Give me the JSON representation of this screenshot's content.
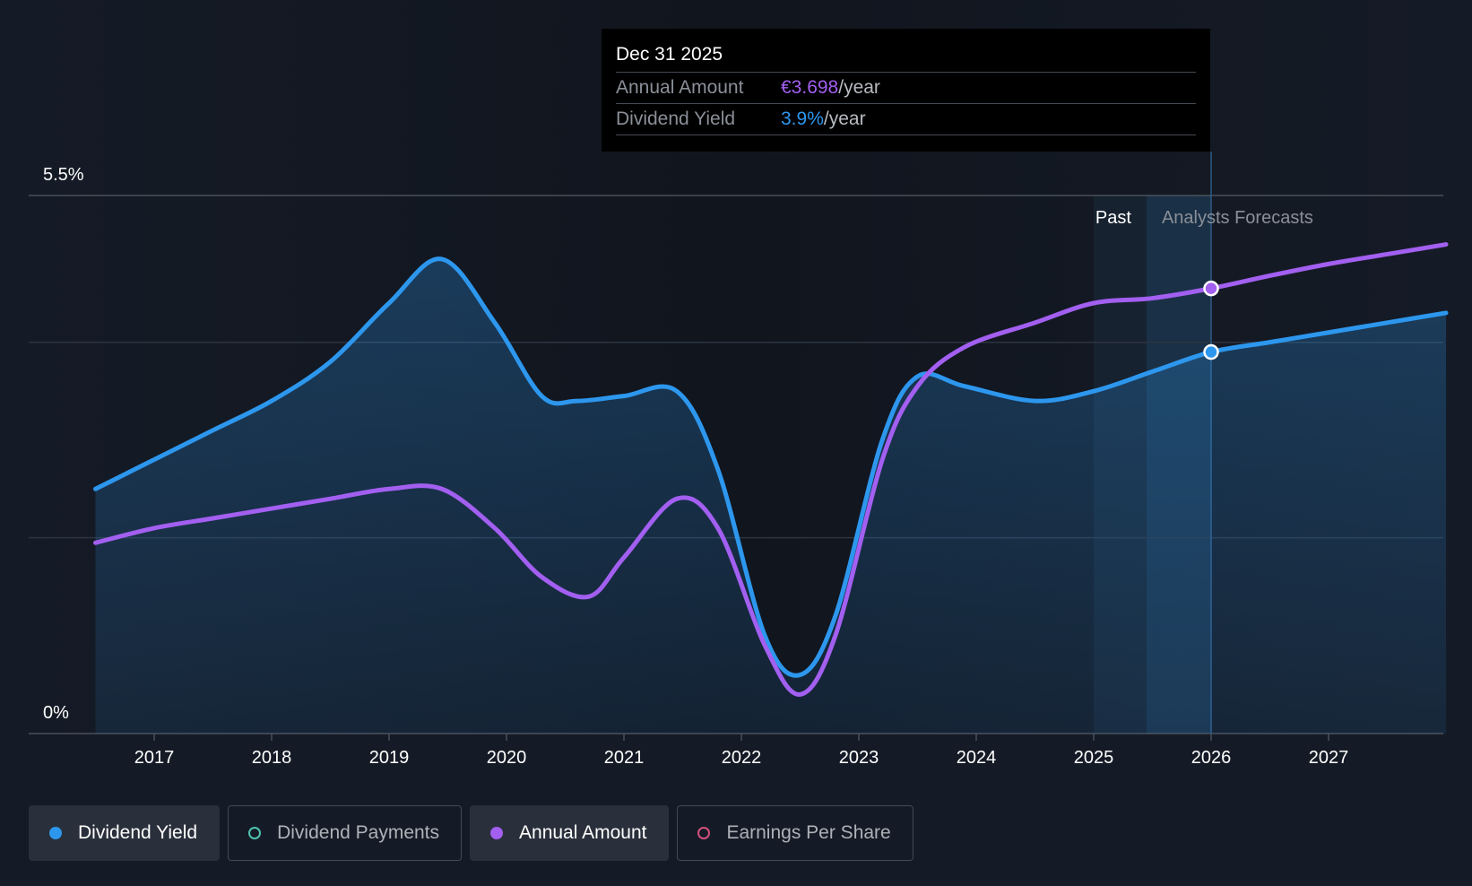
{
  "chart_data": {
    "type": "line",
    "y_axis": {
      "labels": [
        "5.5%",
        "0%"
      ],
      "ylim": [
        0,
        5.5
      ],
      "grid": true
    },
    "x_axis": {
      "ticks": [
        "2017",
        "2018",
        "2019",
        "2020",
        "2021",
        "2022",
        "2023",
        "2024",
        "2025",
        "2026",
        "2027"
      ],
      "xlim": [
        2016.0,
        2028.0
      ]
    },
    "zones": {
      "past_label": "Past",
      "forecast_label": "Analysts Forecasts",
      "forecast_start": 2025.45
    },
    "series": [
      {
        "name": "Dividend Yield",
        "color": "#2d97ee",
        "filled": true,
        "points": [
          [
            2016.5,
            2.5
          ],
          [
            2017.0,
            2.8
          ],
          [
            2017.5,
            3.1
          ],
          [
            2018.0,
            3.4
          ],
          [
            2018.5,
            3.8
          ],
          [
            2019.0,
            4.4
          ],
          [
            2019.45,
            4.85
          ],
          [
            2019.9,
            4.2
          ],
          [
            2020.3,
            3.45
          ],
          [
            2020.6,
            3.4
          ],
          [
            2021.0,
            3.45
          ],
          [
            2021.45,
            3.5
          ],
          [
            2021.8,
            2.7
          ],
          [
            2022.2,
            1.0
          ],
          [
            2022.5,
            0.6
          ],
          [
            2022.8,
            1.2
          ],
          [
            2023.2,
            3.0
          ],
          [
            2023.5,
            3.65
          ],
          [
            2023.9,
            3.55
          ],
          [
            2024.5,
            3.4
          ],
          [
            2025.0,
            3.5
          ],
          [
            2025.5,
            3.7
          ],
          [
            2026.0,
            3.9
          ],
          [
            2026.5,
            4.0
          ],
          [
            2027.0,
            4.1
          ],
          [
            2027.5,
            4.2
          ],
          [
            2028.0,
            4.3
          ]
        ]
      },
      {
        "name": "Annual Amount",
        "color": "#a25ff0",
        "filled": false,
        "points": [
          [
            2016.5,
            1.95
          ],
          [
            2017.0,
            2.1
          ],
          [
            2017.5,
            2.2
          ],
          [
            2018.0,
            2.3
          ],
          [
            2018.5,
            2.4
          ],
          [
            2019.0,
            2.5
          ],
          [
            2019.45,
            2.5
          ],
          [
            2019.9,
            2.1
          ],
          [
            2020.3,
            1.6
          ],
          [
            2020.7,
            1.4
          ],
          [
            2021.0,
            1.8
          ],
          [
            2021.45,
            2.4
          ],
          [
            2021.8,
            2.1
          ],
          [
            2022.2,
            0.9
          ],
          [
            2022.5,
            0.4
          ],
          [
            2022.8,
            1.0
          ],
          [
            2023.2,
            2.8
          ],
          [
            2023.5,
            3.55
          ],
          [
            2023.9,
            3.95
          ],
          [
            2024.5,
            4.2
          ],
          [
            2025.0,
            4.4
          ],
          [
            2025.5,
            4.45
          ],
          [
            2026.0,
            4.55
          ],
          [
            2026.5,
            4.68
          ],
          [
            2027.0,
            4.8
          ],
          [
            2027.5,
            4.9
          ],
          [
            2028.0,
            5.0
          ]
        ]
      }
    ],
    "highlight_x": 2026.0
  },
  "tooltip": {
    "date": "Dec 31 2025",
    "rows": [
      {
        "label": "Annual Amount",
        "value": "€3.698",
        "unit": "/year"
      },
      {
        "label": "Dividend Yield",
        "value": "3.9%",
        "unit": "/year"
      }
    ]
  },
  "legend": [
    {
      "label": "Dividend Yield",
      "color": "#2d97ee",
      "active": true,
      "filled": true
    },
    {
      "label": "Dividend Payments",
      "color": "#4fc2b0",
      "active": false,
      "filled": false
    },
    {
      "label": "Annual Amount",
      "color": "#a25ff0",
      "active": true,
      "filled": true
    },
    {
      "label": "Earnings Per Share",
      "color": "#d4507e",
      "active": false,
      "filled": false
    }
  ]
}
